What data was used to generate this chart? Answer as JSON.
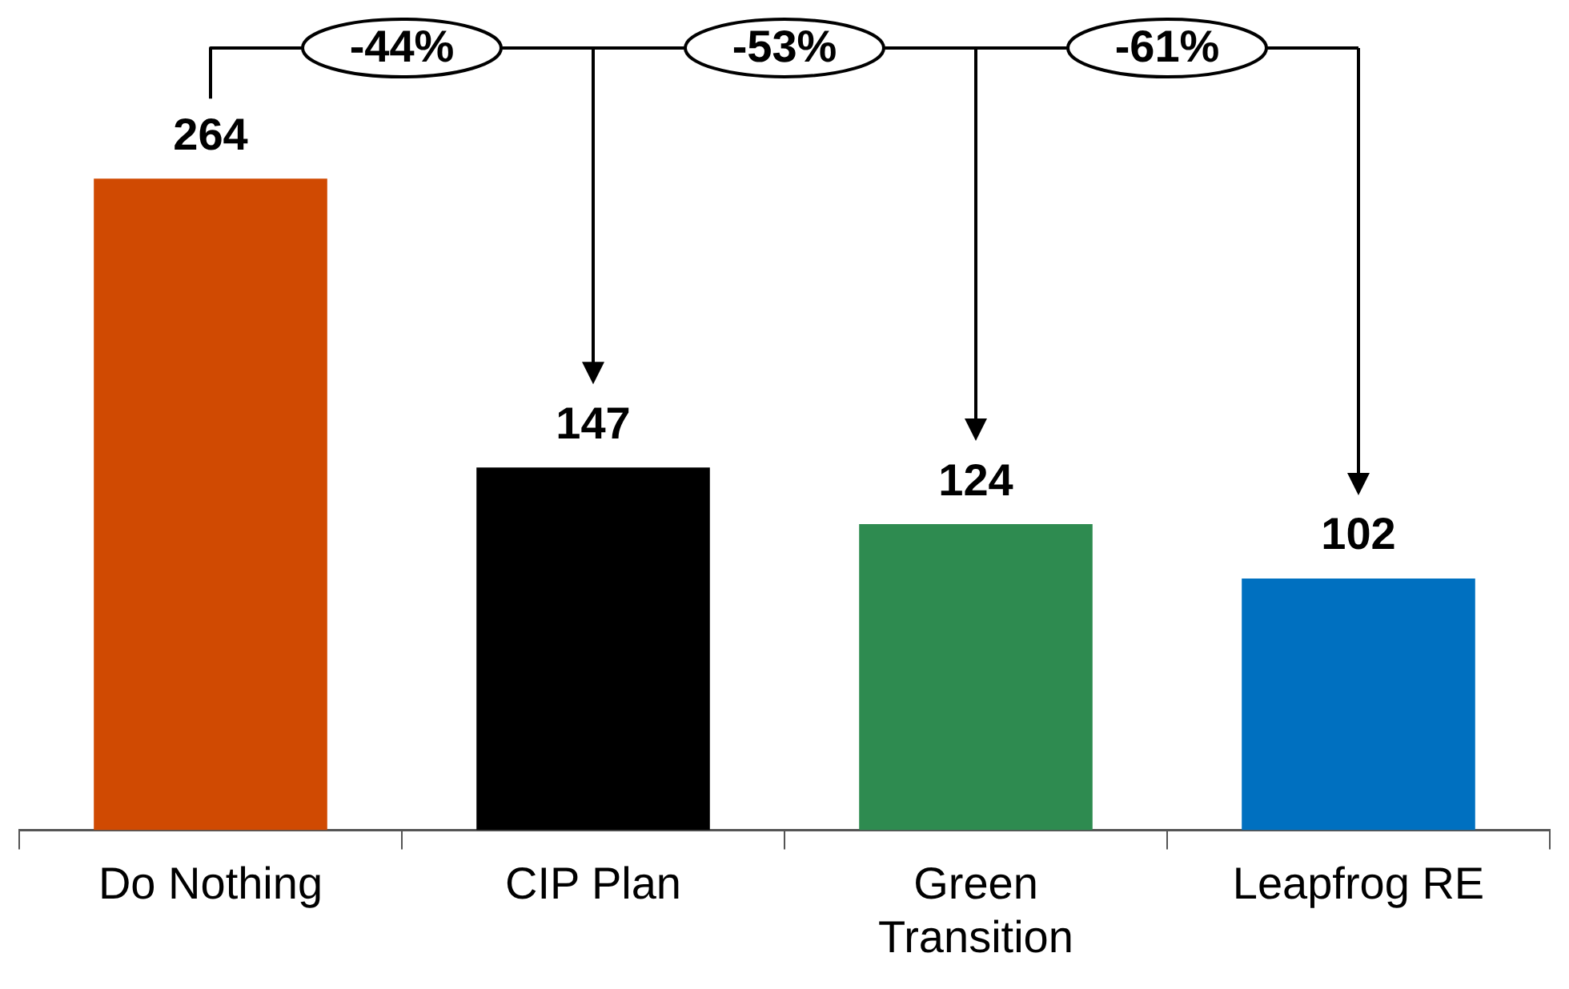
{
  "chart_data": {
    "type": "bar",
    "categories": [
      "Do Nothing",
      "CIP Plan",
      "Green Transition",
      "Leapfrog RE"
    ],
    "values": [
      264,
      147,
      124,
      102
    ],
    "colors": [
      "#d04a02",
      "#000000",
      "#2e8b50",
      "#0070c0"
    ],
    "data_labels": true,
    "grid": false,
    "legend": false,
    "tick_labels": "x",
    "annotations": [
      "-44%",
      "-53%",
      "-61%"
    ]
  }
}
